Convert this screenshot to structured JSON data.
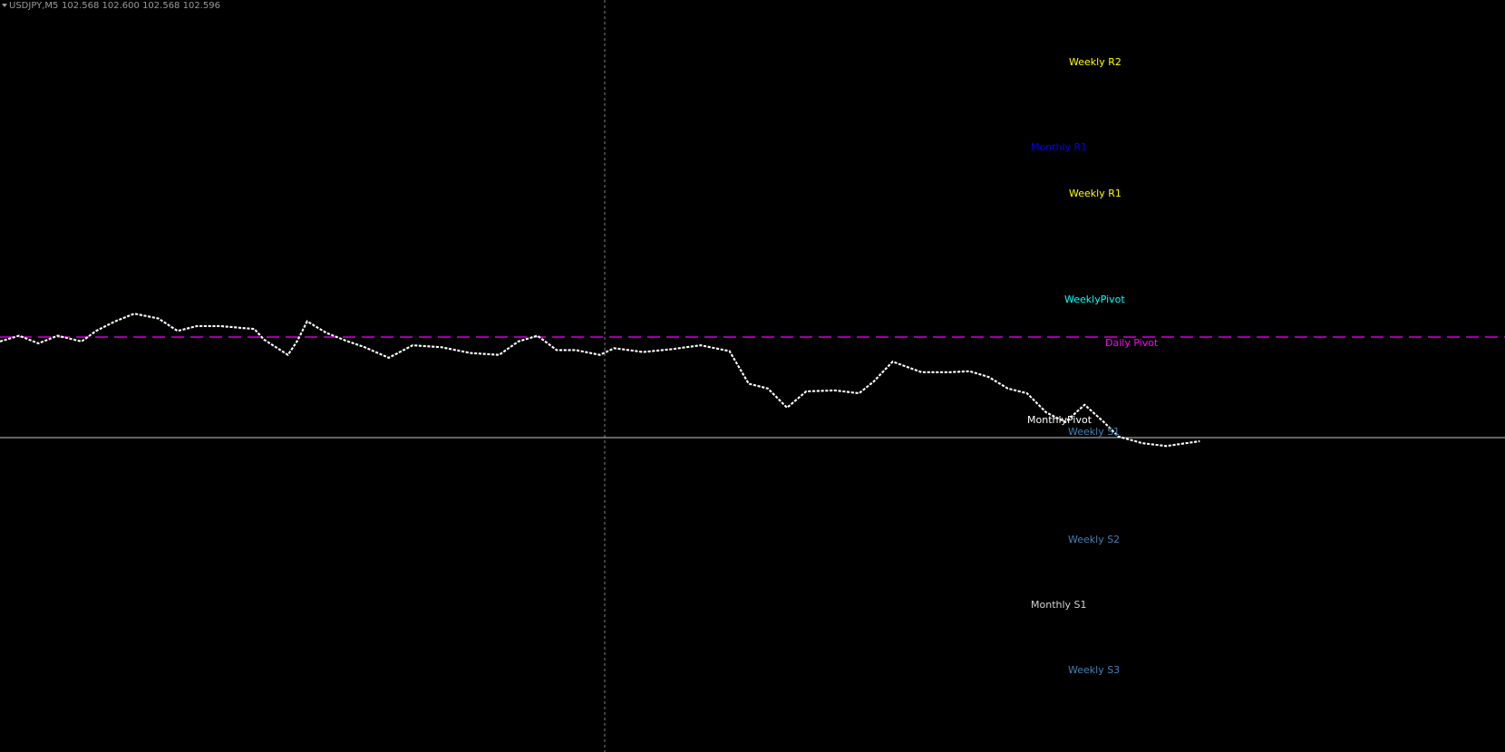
{
  "header": {
    "symbol": "USDJPY,M5",
    "quote": "102.568 102.600 102.568 102.596"
  },
  "labels": [
    {
      "text": "Weekly R2"
    },
    {
      "text": "Monthly R1"
    },
    {
      "text": "Weekly R1"
    },
    {
      "text": "WeeklyPivot"
    },
    {
      "text": "Daily Pivot"
    },
    {
      "text": "MonthlyPivot"
    },
    {
      "text": "Weekly S1"
    },
    {
      "text": "Weekly S2"
    },
    {
      "text": "Monthly S1"
    },
    {
      "text": "Weekly S3"
    }
  ]
}
